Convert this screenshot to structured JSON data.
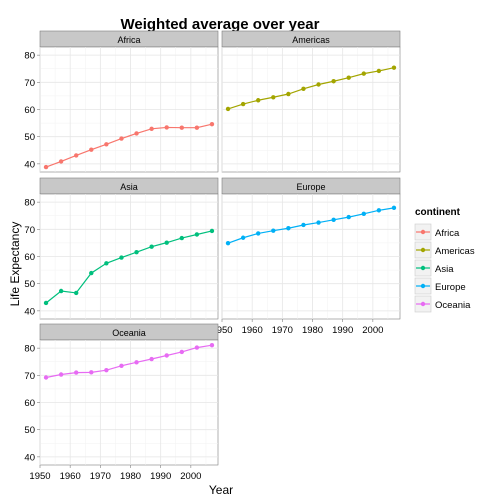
{
  "chart_data": {
    "type": "line",
    "title": "Weighted average over year",
    "xlabel": "Year",
    "ylabel": "Life Expectancy",
    "xlim": [
      1950,
      2009
    ],
    "ylim": [
      37,
      83
    ],
    "xticks": [
      1950,
      1960,
      1970,
      1980,
      1990,
      2000
    ],
    "yticks": [
      40,
      50,
      60,
      70,
      80
    ],
    "x": [
      1952,
      1957,
      1962,
      1967,
      1972,
      1977,
      1982,
      1987,
      1992,
      1997,
      2002,
      2007
    ],
    "legend": {
      "title": "continent",
      "position": "right"
    },
    "panel_bg": "#ffffff",
    "grid": true,
    "series": [
      {
        "name": "Africa",
        "color": "#F8766D",
        "values": [
          38.8,
          40.9,
          43.1,
          45.2,
          47.2,
          49.3,
          51.2,
          52.9,
          53.4,
          53.3,
          53.3,
          54.6
        ]
      },
      {
        "name": "Americas",
        "color": "#A3A500",
        "values": [
          60.2,
          62.0,
          63.4,
          64.5,
          65.7,
          67.6,
          69.2,
          70.4,
          71.7,
          73.2,
          74.2,
          75.4
        ]
      },
      {
        "name": "Asia",
        "color": "#00BF7D",
        "values": [
          42.9,
          47.3,
          46.6,
          53.9,
          57.5,
          59.6,
          61.6,
          63.6,
          65.1,
          66.8,
          68.1,
          69.4
        ]
      },
      {
        "name": "Europe",
        "color": "#00B0F6",
        "values": [
          64.9,
          66.9,
          68.5,
          69.5,
          70.4,
          71.6,
          72.5,
          73.5,
          74.5,
          75.7,
          77.0,
          77.9
        ]
      },
      {
        "name": "Oceania",
        "color": "#E76BF3",
        "values": [
          69.2,
          70.3,
          71.0,
          71.1,
          71.9,
          73.5,
          74.8,
          76.0,
          77.3,
          78.6,
          80.2,
          81.1
        ]
      }
    ]
  }
}
